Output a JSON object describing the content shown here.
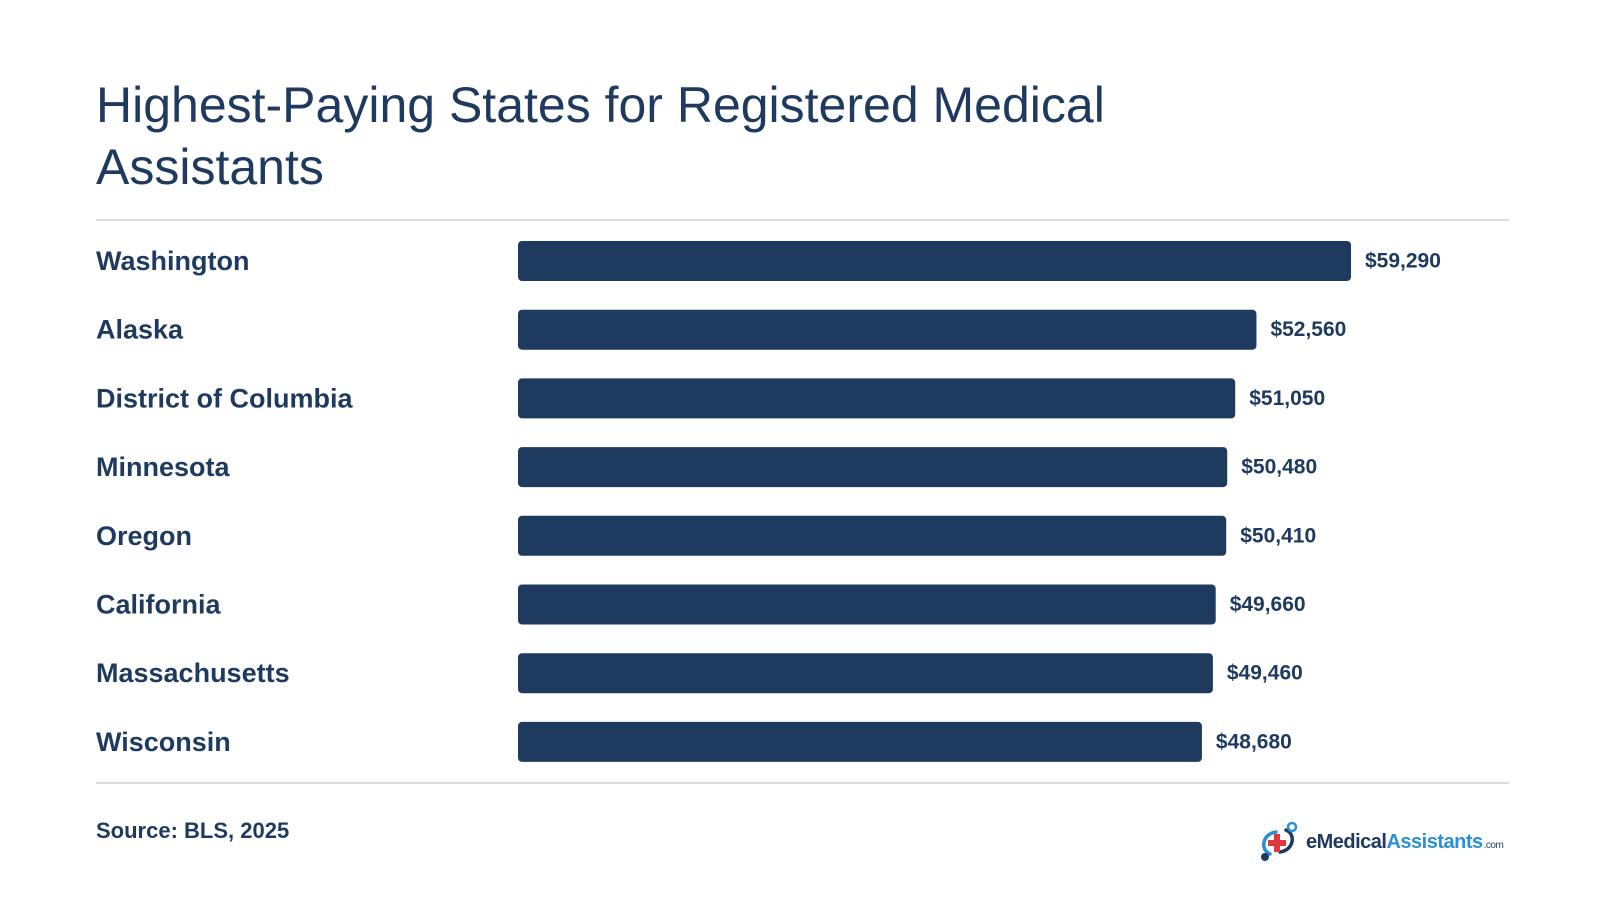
{
  "chart_data": {
    "type": "bar",
    "orientation": "horizontal",
    "title": "Highest-Paying States for Registered Medical Assistants",
    "categories": [
      "Washington",
      "Alaska",
      "District of Columbia",
      "Minnesota",
      "Oregon",
      "California",
      "Massachusetts",
      "Wisconsin"
    ],
    "values": [
      59290,
      52560,
      51050,
      50480,
      50410,
      49660,
      49460,
      48680
    ],
    "value_labels": [
      "$59,290",
      "$52,560",
      "$51,050",
      "$50,480",
      "$50,410",
      "$49,660",
      "$49,460",
      "$48,680"
    ],
    "xlim": [
      0,
      59290
    ],
    "grid": false,
    "bar_color": "#1f3a5f"
  },
  "footer": {
    "source": "Source: BLS, 2025"
  },
  "logo": {
    "text_e": "e",
    "text_medical": "Medical",
    "text_assistants": "Assistants",
    "text_com": ".com",
    "icon": "medical-cross-logo-icon",
    "primary_color": "#1f3a5f",
    "accent_color": "#2b8fd6",
    "cross_color": "#e0383e"
  }
}
